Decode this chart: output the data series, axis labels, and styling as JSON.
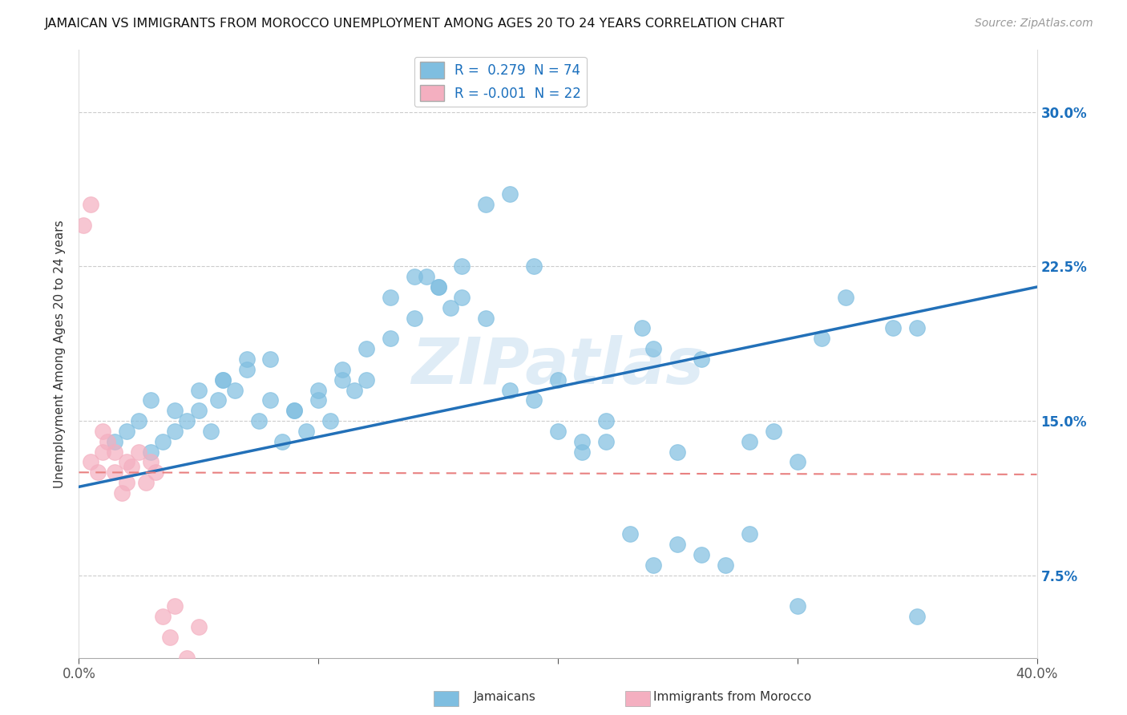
{
  "title": "JAMAICAN VS IMMIGRANTS FROM MOROCCO UNEMPLOYMENT AMONG AGES 20 TO 24 YEARS CORRELATION CHART",
  "source": "Source: ZipAtlas.com",
  "ylabel": "Unemployment Among Ages 20 to 24 years",
  "x_tick_vals": [
    0.0,
    10.0,
    20.0,
    30.0,
    40.0
  ],
  "y_tick_vals": [
    7.5,
    15.0,
    22.5,
    30.0
  ],
  "xlim": [
    0.0,
    40.0
  ],
  "ylim": [
    3.5,
    33.0
  ],
  "legend_label1": "R =  0.279  N = 74",
  "legend_label2": "R = -0.001  N = 22",
  "blue_color": "#7fbee0",
  "pink_color": "#f4afc0",
  "blue_line_color": "#2270b8",
  "pink_line_color": "#e88080",
  "watermark": "ZIPatlas",
  "blue_scatter_x": [
    1.5,
    2.0,
    2.5,
    3.0,
    3.5,
    4.0,
    4.5,
    5.0,
    5.5,
    5.8,
    6.0,
    6.5,
    7.0,
    7.5,
    8.0,
    8.5,
    9.0,
    9.5,
    10.0,
    10.5,
    11.0,
    11.5,
    12.0,
    13.0,
    14.0,
    14.5,
    15.0,
    15.5,
    16.0,
    17.0,
    18.0,
    19.0,
    20.0,
    21.0,
    22.0,
    23.5,
    24.0,
    25.0,
    26.0,
    28.0,
    29.0,
    30.0,
    31.0,
    32.0,
    34.0,
    35.0,
    3.0,
    4.0,
    5.0,
    6.0,
    7.0,
    8.0,
    9.0,
    10.0,
    11.0,
    12.0,
    13.0,
    14.0,
    15.0,
    16.0,
    17.0,
    18.0,
    19.0,
    20.0,
    21.0,
    22.0,
    23.0,
    24.0,
    25.0,
    26.0,
    27.0,
    28.0,
    30.0,
    35.0
  ],
  "blue_scatter_y": [
    14.0,
    14.5,
    15.0,
    13.5,
    14.0,
    14.5,
    15.0,
    15.5,
    14.5,
    16.0,
    17.0,
    16.5,
    18.0,
    15.0,
    16.0,
    14.0,
    15.5,
    14.5,
    16.0,
    15.0,
    17.0,
    16.5,
    17.0,
    19.0,
    20.0,
    22.0,
    21.5,
    20.5,
    21.0,
    20.0,
    16.5,
    16.0,
    14.5,
    14.0,
    15.0,
    19.5,
    18.5,
    13.5,
    18.0,
    14.0,
    14.5,
    13.0,
    19.0,
    21.0,
    19.5,
    19.5,
    16.0,
    15.5,
    16.5,
    17.0,
    17.5,
    18.0,
    15.5,
    16.5,
    17.5,
    18.5,
    21.0,
    22.0,
    21.5,
    22.5,
    25.5,
    26.0,
    22.5,
    17.0,
    13.5,
    14.0,
    9.5,
    8.0,
    9.0,
    8.5,
    8.0,
    9.5,
    6.0,
    5.5
  ],
  "pink_scatter_x": [
    0.2,
    0.5,
    0.5,
    0.8,
    1.0,
    1.0,
    1.2,
    1.5,
    1.5,
    1.8,
    2.0,
    2.0,
    2.2,
    2.5,
    2.8,
    3.0,
    3.2,
    3.5,
    3.8,
    4.0,
    4.5,
    5.0
  ],
  "pink_scatter_y": [
    24.5,
    25.5,
    13.0,
    12.5,
    13.5,
    14.5,
    14.0,
    12.5,
    13.5,
    11.5,
    12.0,
    13.0,
    12.8,
    13.5,
    12.0,
    13.0,
    12.5,
    5.5,
    4.5,
    6.0,
    3.5,
    5.0
  ],
  "blue_trendline_x": [
    0.0,
    40.0
  ],
  "blue_trendline_y": [
    11.8,
    21.5
  ],
  "pink_trendline_y": [
    12.5,
    12.4
  ]
}
